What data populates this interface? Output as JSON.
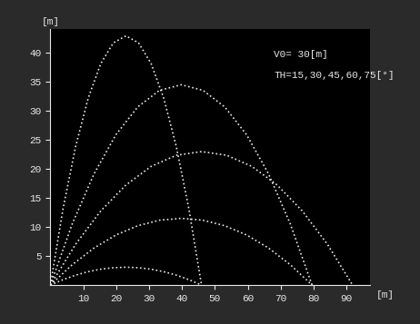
{
  "chart_data": {
    "type": "line",
    "x_label": "[m]",
    "y_label": "[m]",
    "annotations": [
      "V0= 30[m]",
      "TH=15,30,45,60,75[°]"
    ],
    "color": "#e8e8e8",
    "line_style": "dotted",
    "series": [
      {
        "x": [
          0,
          3.83,
          7.65,
          11.48,
          15.31,
          19.13,
          22.96,
          26.79,
          30.61,
          34.44,
          38.27,
          42.09,
          45.92
        ],
        "values": [
          0,
          0.94,
          1.71,
          2.31,
          2.74,
          2.99,
          3.08,
          2.99,
          2.74,
          2.31,
          1.71,
          0.94,
          0
        ]
      },
      {
        "x": [
          0,
          6.63,
          13.26,
          19.88,
          26.51,
          33.14,
          39.77,
          46.39,
          53.02,
          59.65,
          66.28,
          72.9,
          79.53
        ],
        "values": [
          0,
          3.51,
          6.38,
          8.61,
          10.2,
          11.16,
          11.48,
          11.16,
          10.2,
          8.61,
          6.38,
          3.51,
          0
        ]
      },
      {
        "x": [
          0,
          7.65,
          15.31,
          22.96,
          30.61,
          38.27,
          45.92,
          53.57,
          61.23,
          68.88,
          76.53,
          84.19,
          91.84
        ],
        "values": [
          0,
          7.02,
          12.76,
          17.22,
          20.41,
          22.32,
          22.96,
          22.32,
          20.41,
          17.22,
          12.76,
          7.02,
          0
        ]
      },
      {
        "x": [
          0,
          6.63,
          13.26,
          19.88,
          26.51,
          33.14,
          39.77,
          46.39,
          53.02,
          59.65,
          66.28,
          72.9,
          79.53
        ],
        "values": [
          0,
          10.52,
          19.13,
          25.83,
          30.61,
          33.48,
          34.44,
          33.48,
          30.61,
          25.83,
          19.13,
          10.52,
          0
        ]
      },
      {
        "x": [
          0,
          3.83,
          7.65,
          11.48,
          15.31,
          19.13,
          22.96,
          26.79,
          30.61,
          34.44,
          38.27,
          42.09,
          45.92
        ],
        "values": [
          0,
          13.09,
          23.8,
          32.13,
          38.08,
          41.65,
          42.84,
          41.65,
          38.08,
          32.13,
          23.8,
          13.09,
          0
        ]
      }
    ],
    "xlim": [
      0,
      97
    ],
    "ylim": [
      0,
      44
    ],
    "xticks": [
      10,
      20,
      30,
      40,
      50,
      60,
      70,
      80,
      90
    ],
    "yticks": [
      5,
      10,
      15,
      20,
      25,
      30,
      35,
      40
    ],
    "grid": false
  }
}
